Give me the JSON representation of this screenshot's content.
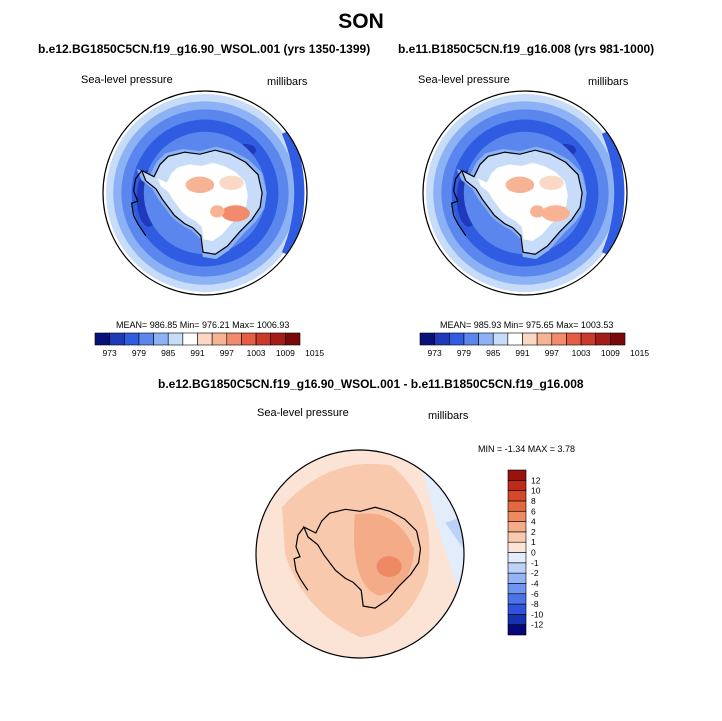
{
  "page_title": "SON",
  "colors": {
    "abs_scale": [
      "#08117a",
      "#1f3ab8",
      "#2f5ce0",
      "#5a86ee",
      "#8cb1f4",
      "#c7dcf8",
      "#ffffff",
      "#fbd8c4",
      "#f8b394",
      "#f28b6b",
      "#e35e45",
      "#c93a2b",
      "#a31c18",
      "#7a0a0a"
    ],
    "diff_scale": [
      "#07077a",
      "#1533b0",
      "#2e53dd",
      "#4b73ea",
      "#6e95f1",
      "#93b4f5",
      "#bcd1f7",
      "#e3ecfb",
      "#fbe4d6",
      "#f8c9ad",
      "#f4ab88",
      "#ef8962",
      "#e6683f",
      "#d5482a",
      "#bd2b1a",
      "#9a120e"
    ],
    "coastline": "#000000"
  },
  "panels": [
    {
      "title": "b.e12.BG1850C5CN.f19_g16.90_WSOL.001 (yrs 1350-1399)",
      "left_label": "Sea-level pressure",
      "right_label": "millibars",
      "stats": "MEAN= 986.85   Min= 976.21   Max= 1006.93"
    },
    {
      "title": "b.e11.B1850C5CN.f19_g16.008 (yrs 981-1000)",
      "left_label": "Sea-level pressure",
      "right_label": "millibars",
      "stats": "MEAN= 985.93   Min= 975.65   Max= 1003.53"
    },
    {
      "title": "b.e12.BG1850C5CN.f19_g16.90_WSOL.001 - b.e11.B1850C5CN.f19_g16.008",
      "left_label": "Sea-level pressure",
      "right_label": "millibars",
      "stats": "MIN =  -1.34  MAX =   3.78"
    }
  ],
  "chart_data": [
    {
      "type": "heatmap",
      "title": "b.e12.BG1850C5CN.f19_g16.90_WSOL.001 (yrs 1350-1399)",
      "variable": "Sea-level pressure",
      "units": "millibars",
      "projection": "south polar stereographic",
      "mean": 986.85,
      "min": 976.21,
      "max": 1006.93,
      "contour_levels": [
        973,
        976,
        979,
        982,
        985,
        988,
        991,
        994,
        997,
        1000,
        1003,
        1006,
        1009,
        1012,
        1015
      ],
      "colorbar_tick_labels": [
        "973",
        "979",
        "985",
        "991",
        "997",
        "1003",
        "1009",
        "1015"
      ]
    },
    {
      "type": "heatmap",
      "title": "b.e11.B1850C5CN.f19_g16.008 (yrs 981-1000)",
      "variable": "Sea-level pressure",
      "units": "millibars",
      "projection": "south polar stereographic",
      "mean": 985.93,
      "min": 975.65,
      "max": 1003.53,
      "contour_levels": [
        973,
        976,
        979,
        982,
        985,
        988,
        991,
        994,
        997,
        1000,
        1003,
        1006,
        1009,
        1012,
        1015
      ],
      "colorbar_tick_labels": [
        "973",
        "979",
        "985",
        "991",
        "997",
        "1003",
        "1009",
        "1015"
      ]
    },
    {
      "type": "heatmap",
      "title": "b.e12.BG1850C5CN.f19_g16.90_WSOL.001 - b.e11.B1850C5CN.f19_g16.008",
      "variable": "Sea-level pressure",
      "units": "millibars",
      "projection": "south polar stereographic",
      "min": -1.34,
      "max": 3.78,
      "contour_levels": [
        -12,
        -10,
        -8,
        -6,
        -4,
        -2,
        -1,
        0,
        1,
        2,
        4,
        6,
        8,
        10,
        12
      ],
      "colorbar_tick_labels": [
        "12",
        "10",
        "8",
        "6",
        "4",
        "2",
        "1",
        "0",
        "-1",
        "-2",
        "-4",
        "-6",
        "-8",
        "-10",
        "-12"
      ]
    }
  ]
}
